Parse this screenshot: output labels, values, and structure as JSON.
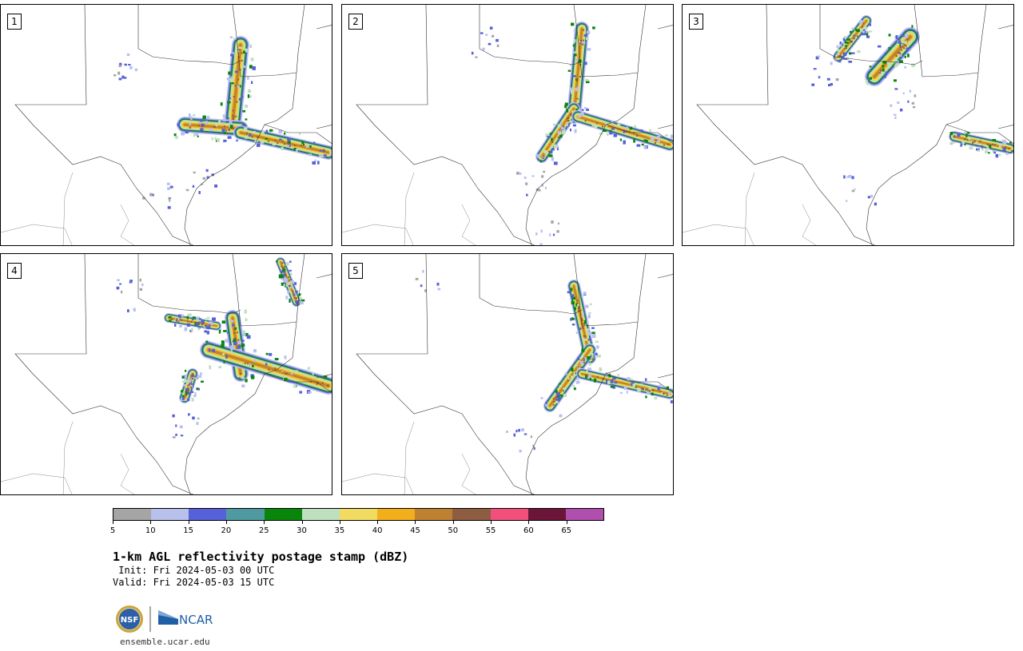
{
  "panels": [
    {
      "label": "1"
    },
    {
      "label": "2"
    },
    {
      "label": "3"
    },
    {
      "label": "4"
    },
    {
      "label": "5"
    }
  ],
  "colorbar": {
    "colors": [
      "#a5a5a5",
      "#b8c0ec",
      "#5660d8",
      "#4e9aa0",
      "#09850b",
      "#bfe0bf",
      "#f1db63",
      "#f2ae1b",
      "#bc8231",
      "#8e5c40",
      "#f1507c",
      "#6b1538",
      "#b04fae"
    ],
    "tick_labels": [
      "5",
      "10",
      "15",
      "20",
      "25",
      "30",
      "35",
      "40",
      "45",
      "50",
      "55",
      "60",
      "65"
    ]
  },
  "title": "1-km AGL reflectivity postage stamp (dBZ)",
  "init": " Init: Fri 2024-05-03 00 UTC",
  "valid": "Valid: Fri 2024-05-03 15 UTC",
  "logos": {
    "nsf": "NSF",
    "ncar": "NCAR",
    "nsf_icon": "nsf-seal-icon",
    "ncar_icon": "ncar-logo-icon"
  },
  "website": "ensemble.ucar.edu"
}
